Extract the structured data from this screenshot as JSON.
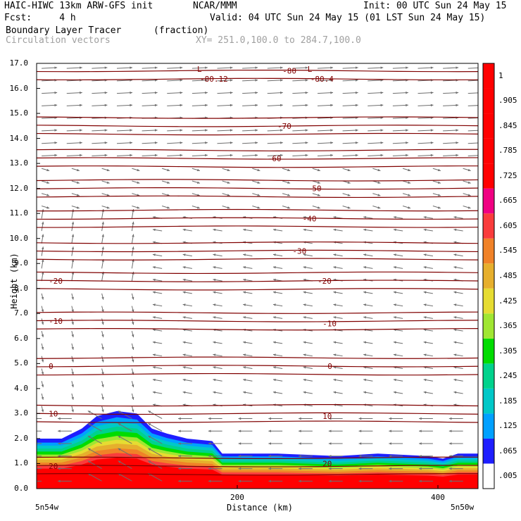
{
  "header": {
    "line1_left": "HAIC-HIWC 13km ARW-GFS init",
    "line1_mid": "NCAR/MMM",
    "line1_right": "Init: 00 UTC Sun 24 May 15",
    "line2_left": "Fcst:     4 h",
    "line2_right": "Valid: 04 UTC Sun 24 May 15 (01 LST Sun 24 May 15)",
    "field_name": "Boundary Layer Tracer",
    "field_units": "(fraction)",
    "vector_name": "Circulation vectors",
    "xy_range": "XY= 251.0,100.0 to 284.7,100.0"
  },
  "chart_data": {
    "type": "heatmap",
    "ylabel": "Height (km)",
    "xlabel": "Distance (km)",
    "ylim": [
      0,
      17
    ],
    "xlim": [
      0,
      440
    ],
    "y_ticks": [
      "0.0",
      "1.0",
      "2.0",
      "3.0",
      "4.0",
      "5.0",
      "6.0",
      "7.0",
      "8.0",
      "9.0",
      "10.0",
      "11.0",
      "12.0",
      "13.0",
      "14.0",
      "15.0",
      "16.0",
      "17.0"
    ],
    "x_ticks": [
      {
        "value": 200,
        "label": "200"
      },
      {
        "value": 400,
        "label": "400"
      }
    ],
    "x_endpoint_labels": {
      "left": "5n54w",
      "right": "5n50w"
    },
    "colorbar_labels": [
      ".005",
      ".065",
      ".125",
      ".185",
      ".245",
      ".305",
      ".365",
      ".425",
      ".485",
      ".545",
      ".605",
      ".665",
      ".725",
      ".785",
      ".845",
      ".905",
      "1"
    ],
    "colorbar_colors": [
      "#ffffff",
      "#1e1eff",
      "#00a0ff",
      "#00c8c8",
      "#00d28c",
      "#00dc00",
      "#a0e632",
      "#e6dc32",
      "#e6af2d",
      "#f08228",
      "#fa3c3c",
      "#f00082",
      "#ff0000",
      "#ff0000",
      "#ff0000",
      "#ff0000",
      "#ff0000"
    ],
    "tracer_top_profile": [
      {
        "x": 0,
        "h": 2.0
      },
      {
        "x": 25,
        "h": 2.0
      },
      {
        "x": 45,
        "h": 2.4
      },
      {
        "x": 60,
        "h": 2.9
      },
      {
        "x": 80,
        "h": 3.1
      },
      {
        "x": 100,
        "h": 3.0
      },
      {
        "x": 115,
        "h": 2.4
      },
      {
        "x": 130,
        "h": 2.2
      },
      {
        "x": 150,
        "h": 2.0
      },
      {
        "x": 175,
        "h": 1.9
      },
      {
        "x": 185,
        "h": 1.4
      },
      {
        "x": 240,
        "h": 1.4
      },
      {
        "x": 300,
        "h": 1.3
      },
      {
        "x": 340,
        "h": 1.4
      },
      {
        "x": 390,
        "h": 1.3
      },
      {
        "x": 405,
        "h": 1.2
      },
      {
        "x": 420,
        "h": 1.4
      },
      {
        "x": 440,
        "h": 1.4
      }
    ],
    "temperature_contours": [
      {
        "value": 20,
        "label": "20",
        "label_positions": [
          {
            "x": 12,
            "h": 0.9
          },
          {
            "x": 285,
            "h": 1.0
          }
        ]
      },
      {
        "value": 10,
        "label": "10",
        "label_positions": [
          {
            "x": 12,
            "h": 3.0
          },
          {
            "x": 285,
            "h": 2.9
          }
        ]
      },
      {
        "value": 0,
        "label": "0",
        "label_positions": [
          {
            "x": 12,
            "h": 4.9
          },
          {
            "x": 290,
            "h": 4.9
          }
        ]
      },
      {
        "value": -10,
        "label": "-10",
        "label_positions": [
          {
            "x": 12,
            "h": 6.7
          },
          {
            "x": 285,
            "h": 6.6
          }
        ]
      },
      {
        "value": -20,
        "label": "-20",
        "label_positions": [
          {
            "x": 12,
            "h": 8.3
          },
          {
            "x": 280,
            "h": 8.3
          }
        ]
      },
      {
        "value": -30,
        "label": "-30",
        "label_positions": [
          {
            "x": 255,
            "h": 9.5
          }
        ]
      },
      {
        "value": -40,
        "label": "-40",
        "label_positions": [
          {
            "x": 265,
            "h": 10.8
          }
        ]
      },
      {
        "value": -50,
        "label": "-50",
        "label_positions": [
          {
            "x": 270,
            "h": 12.0
          }
        ]
      },
      {
        "value": -60,
        "label": "-60",
        "label_positions": [
          {
            "x": 230,
            "h": 13.2
          }
        ]
      },
      {
        "value": -70,
        "label": "-70",
        "label_positions": [
          {
            "x": 240,
            "h": 14.5
          }
        ]
      },
      {
        "value": -80,
        "label": "-80",
        "label_positions": [
          {
            "x": 245,
            "h": 16.7
          }
        ]
      }
    ],
    "min_labels": [
      {
        "label": "L",
        "value": "-80.12",
        "x": 160,
        "h": 16.6
      },
      {
        "label": "L",
        "value": "-80.4",
        "x": 270,
        "h": 16.6
      }
    ]
  }
}
